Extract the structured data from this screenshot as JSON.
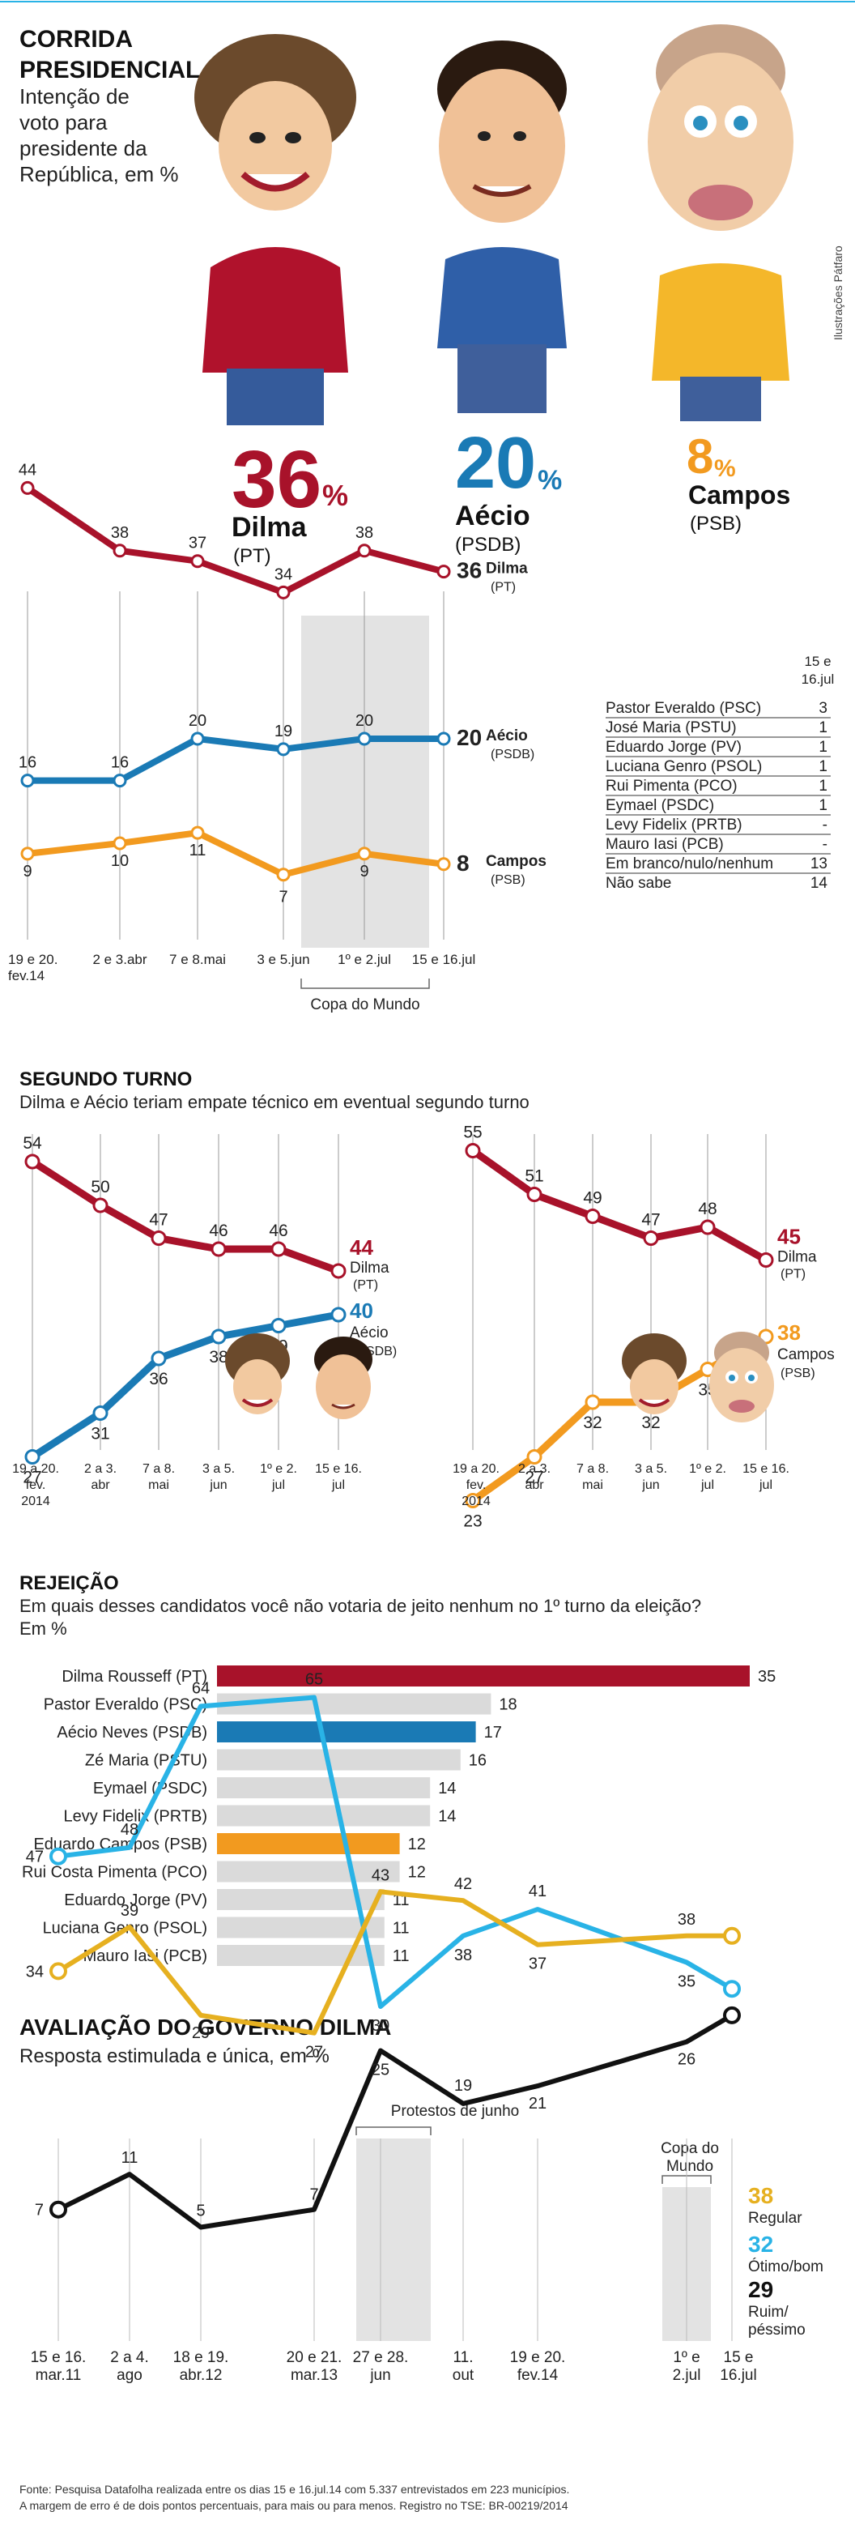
{
  "header": {
    "title_line1": "CORRIDA",
    "title_line2": "PRESIDENCIAL",
    "subtitle_lines": [
      "Intenção de",
      "voto para",
      "presidente da",
      "República, em %"
    ],
    "credit": "Ilustrações Pátfaro"
  },
  "headline_candidates": [
    {
      "value": "36",
      "pct": "%",
      "name": "Dilma",
      "party": "(PT)",
      "color": "#a8122a"
    },
    {
      "value": "20",
      "pct": "%",
      "name": "Aécio",
      "party": "(PSDB)",
      "color": "#1a7ab5"
    },
    {
      "value": "8",
      "pct": "%",
      "name": "Campos",
      "party": "(PSB)",
      "color": "#f29a1f"
    }
  ],
  "colors": {
    "dilma": "#a8122a",
    "aecio": "#1a7ab5",
    "campos": "#f29a1f",
    "black": "#111111",
    "grey_bar": "#dadada",
    "shade": "#e3e3e3",
    "light_blue": "#29b3e6",
    "yellow": "#e6b020"
  },
  "chart_data": [
    {
      "type": "line",
      "id": "first_round",
      "x": [
        "19 e 20. fev.14",
        "2 e 3.abr",
        "7 e 8.mai",
        "3 e 5.jun",
        "1º e 2.jul",
        "15 e 16.jul"
      ],
      "series": [
        {
          "name": "Dilma",
          "values": [
            44,
            38,
            37,
            34,
            38,
            36
          ],
          "end_label": "36",
          "end_name": "Dilma",
          "end_party": "(PT)"
        },
        {
          "name": "Aécio",
          "values": [
            16,
            16,
            20,
            19,
            20,
            20
          ],
          "end_label": "20",
          "end_name": "Aécio",
          "end_party": "(PSDB)"
        },
        {
          "name": "Campos",
          "values": [
            9,
            10,
            11,
            7,
            9,
            8
          ],
          "end_label": "8",
          "end_name": "Campos",
          "end_party": "(PSB)"
        }
      ],
      "shaded_label": "Copa do Mundo"
    },
    {
      "type": "table",
      "id": "others",
      "header": "15 e 16.jul",
      "rows": [
        {
          "name": "Pastor Everaldo (PSC)",
          "value": "3"
        },
        {
          "name": "José Maria (PSTU)",
          "value": "1"
        },
        {
          "name": "Eduardo Jorge (PV)",
          "value": "1"
        },
        {
          "name": "Luciana Genro (PSOL)",
          "value": "1"
        },
        {
          "name": "Rui Pimenta (PCO)",
          "value": "1"
        },
        {
          "name": "Eymael (PSDC)",
          "value": "1"
        },
        {
          "name": "Levy Fidelix (PRTB)",
          "value": "-"
        },
        {
          "name": "Mauro Iasi (PCB)",
          "value": "-"
        },
        {
          "name": "Em branco/nulo/nenhum",
          "value": "13"
        },
        {
          "name": "Não sabe",
          "value": "14"
        }
      ]
    },
    {
      "type": "line",
      "id": "second_round_aecio",
      "x": [
        "19 a 20. fev. 2014",
        "2 a 3. abr",
        "7 a 8. mai",
        "3 a 5. jun",
        "1º e 2. jul",
        "15 e 16. jul"
      ],
      "series": [
        {
          "name": "Dilma",
          "values": [
            54,
            50,
            47,
            46,
            46,
            44
          ],
          "end_name": "Dilma",
          "end_party": "(PT)"
        },
        {
          "name": "Aécio",
          "values": [
            27,
            31,
            36,
            38,
            39,
            40
          ],
          "end_name": "Aécio",
          "end_party": "(PSDB)"
        }
      ]
    },
    {
      "type": "line",
      "id": "second_round_campos",
      "x": [
        "19 a 20. fev. 2014",
        "2 a 3. abr",
        "7 a 8. mai",
        "3 a 5. jun",
        "1º e 2. jul",
        "15 e 16. jul"
      ],
      "series": [
        {
          "name": "Dilma",
          "values": [
            55,
            51,
            49,
            47,
            48,
            45
          ],
          "end_name": "Dilma",
          "end_party": "(PT)"
        },
        {
          "name": "Campos",
          "values": [
            23,
            27,
            32,
            32,
            35,
            38
          ],
          "end_name": "Campos",
          "end_party": "(PSB)"
        }
      ]
    },
    {
      "type": "bar",
      "id": "rejection",
      "categories": [
        "Dilma Rousseff (PT)",
        "Pastor Everaldo (PSC)",
        "Aécio Neves (PSDB)",
        "Zé Maria (PSTU)",
        "Eymael (PSDC)",
        "Levy Fidelix (PRTB)",
        "Eduardo Campos (PSB)",
        "Rui Costa Pimenta (PCO)",
        "Eduardo Jorge (PV)",
        "Luciana Genro (PSOL)",
        "Mauro Iasi (PCB)"
      ],
      "values": [
        35,
        18,
        17,
        16,
        14,
        14,
        12,
        12,
        11,
        11,
        11
      ],
      "highlight": [
        "dilma",
        "",
        "aecio",
        "",
        "",
        "",
        "campos",
        "",
        "",
        "",
        ""
      ]
    },
    {
      "type": "line",
      "id": "evaluation",
      "x": [
        "15 e 16. mar.11",
        "2 a 4. ago",
        "18 e 19. abr.12",
        "20 e 21. mar.13",
        "27 e 28. jun",
        "11. out",
        "19 e 20. fev.14",
        "1º e 2.jul",
        "15 e 16.jul"
      ],
      "series": [
        {
          "name": "Ótimo/bom",
          "points": [
            [
              0,
              47
            ],
            [
              1,
              48
            ],
            [
              2,
              64
            ],
            [
              3,
              65
            ],
            [
              4,
              30
            ],
            [
              5,
              38
            ],
            [
              6,
              41
            ],
            [
              7,
              35
            ],
            [
              8,
              32
            ]
          ]
        },
        {
          "name": "Regular",
          "points": [
            [
              0,
              34
            ],
            [
              1,
              39
            ],
            [
              2,
              29
            ],
            [
              3,
              27
            ],
            [
              4,
              43
            ],
            [
              5,
              42
            ],
            [
              6,
              37
            ],
            [
              7,
              38
            ],
            [
              8,
              38
            ]
          ]
        },
        {
          "name": "Ruim/péssimo",
          "points": [
            [
              0,
              7
            ],
            [
              1,
              11
            ],
            [
              2,
              5
            ],
            [
              3,
              7
            ],
            [
              4,
              25
            ],
            [
              5,
              19
            ],
            [
              6,
              21
            ],
            [
              7,
              26
            ],
            [
              8,
              29
            ]
          ]
        }
      ],
      "shaded_labels": [
        "Protestos de junho",
        "Copa do Mundo"
      ]
    }
  ],
  "segundo_turno": {
    "title": "SEGUNDO TURNO",
    "subtitle": "Dilma e Aécio teriam empate técnico em eventual segundo turno"
  },
  "rejeicao": {
    "title": "REJEIÇÃO",
    "subtitle": "Em quais desses candidatos você não votaria de jeito nenhum no 1º turno da eleição?",
    "unit": "Em %"
  },
  "avaliacao": {
    "title": "AVALIAÇÃO DO GOVERNO DILMA",
    "subtitle": "Resposta estimulada e única, em %",
    "end_labels": [
      {
        "value": "38",
        "name": "Regular"
      },
      {
        "value": "32",
        "name": "Ótimo/bom"
      },
      {
        "value": "29",
        "name": "Ruim/",
        "name2": "péssimo"
      }
    ]
  },
  "footer": {
    "line1": "Fonte: Pesquisa Datafolha realizada entre os dias 15 e 16.jul.14 com 5.337 entrevistados em 223 municípios.",
    "line2": "A margem de erro é de dois pontos percentuais, para mais ou para menos. Registro no TSE: BR-00219/2014"
  }
}
